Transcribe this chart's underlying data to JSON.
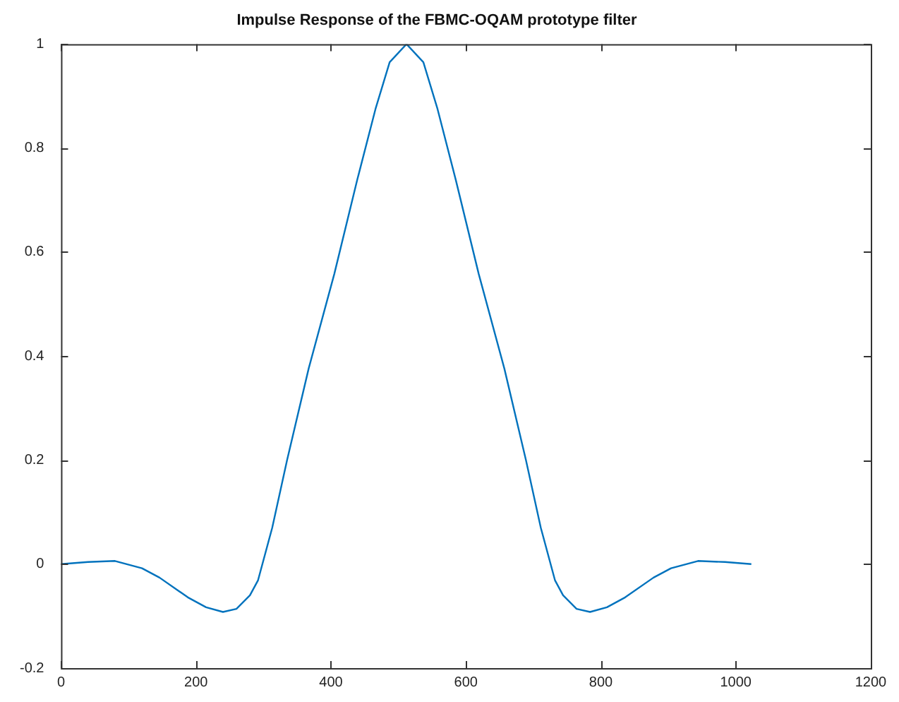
{
  "chart_data": {
    "type": "line",
    "title": "Impulse Response of the FBMC-OQAM prototype filter",
    "x": [
      0,
      40,
      80,
      120,
      146,
      188,
      215,
      240,
      260,
      280,
      292,
      313,
      335,
      367,
      405,
      439,
      466,
      487,
      512,
      537,
      558,
      585,
      619,
      657,
      689,
      711,
      732,
      744,
      764,
      784,
      809,
      836,
      878,
      904,
      944,
      984,
      1023
    ],
    "series": [
      {
        "color": "#0072bd",
        "values": [
          0,
          0.004,
          0.006,
          -0.008,
          -0.026,
          -0.064,
          -0.083,
          -0.092,
          -0.086,
          -0.06,
          -0.031,
          0.07,
          0.2,
          0.376,
          0.558,
          0.739,
          0.875,
          0.965,
          1,
          0.965,
          0.875,
          0.739,
          0.558,
          0.376,
          0.2,
          0.07,
          -0.031,
          -0.06,
          -0.086,
          -0.092,
          -0.083,
          -0.064,
          -0.026,
          -0.008,
          0.006,
          0.004,
          0
        ]
      }
    ],
    "xlim": [
      0,
      1200
    ],
    "xticks": [
      0,
      200,
      400,
      600,
      800,
      1000,
      1200
    ],
    "ylim": [
      -0.2,
      1
    ],
    "yticks": [
      -0.2,
      0,
      0.2,
      0.4,
      0.6,
      0.8,
      1
    ],
    "legend": false,
    "marker": "none",
    "line_style": "solid"
  }
}
